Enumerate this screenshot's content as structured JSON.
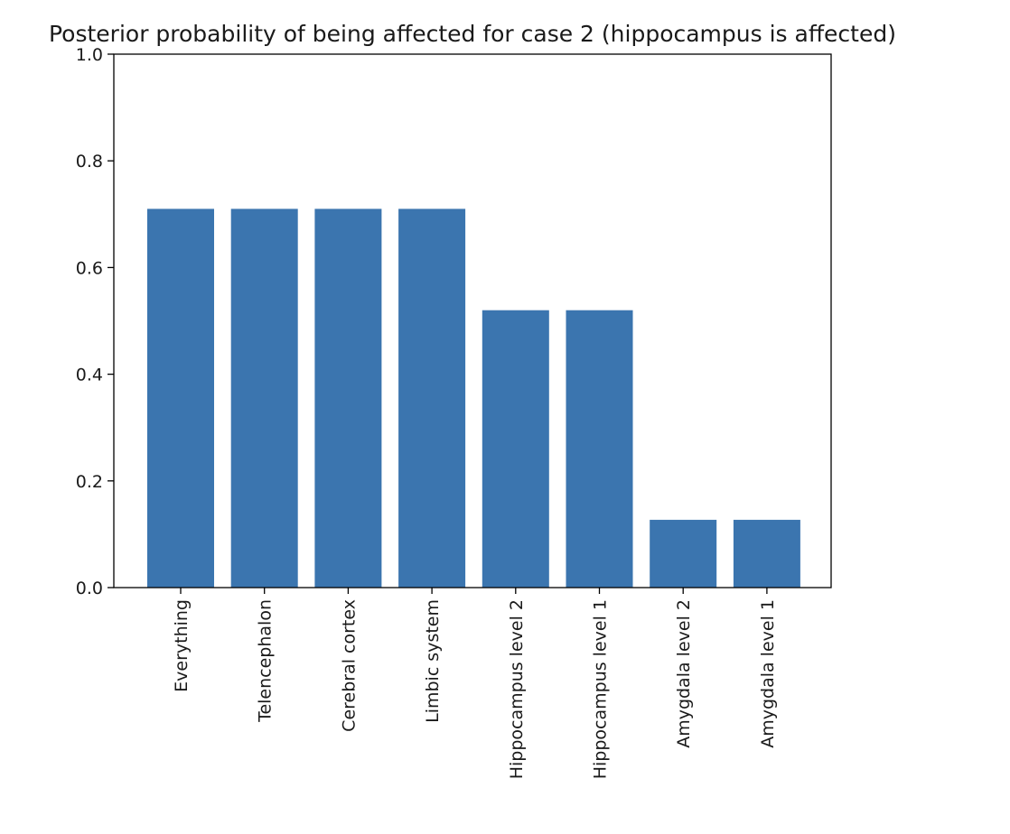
{
  "chart_data": {
    "type": "bar",
    "title": "Posterior probability of being affected for case 2 (hippocampus is affected)",
    "xlabel": "",
    "ylabel": "",
    "categories": [
      "Everything",
      "Telencephalon",
      "Cerebral cortex",
      "Limbic system",
      "Hippocampus level 2",
      "Hippocampus level 1",
      "Amygdala level 2",
      "Amygdala level 1"
    ],
    "values": [
      0.71,
      0.71,
      0.71,
      0.71,
      0.52,
      0.52,
      0.127,
      0.127
    ],
    "ylim": [
      0,
      1.0
    ],
    "yticks": [
      "0.0",
      "0.2",
      "0.4",
      "0.6",
      "0.8",
      "1.0"
    ],
    "grid": false,
    "legend": "none",
    "bar_color": "#3b75af"
  }
}
